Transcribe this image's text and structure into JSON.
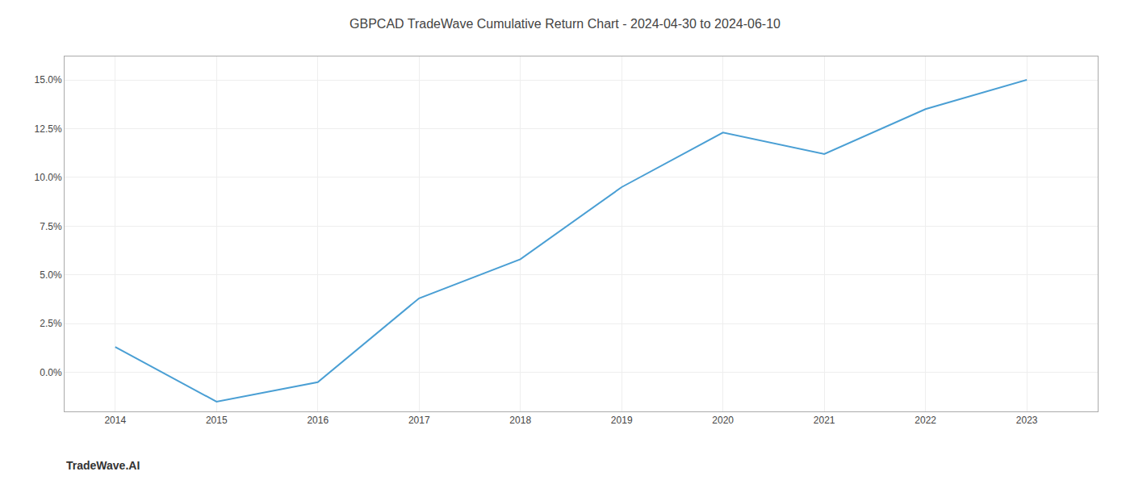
{
  "chart_data": {
    "type": "line",
    "title": "GBPCAD TradeWave Cumulative Return Chart - 2024-04-30 to 2024-06-10",
    "annotations": [
      "TradeWave.AI"
    ],
    "x": [
      2014,
      2015,
      2016,
      2017,
      2018,
      2019,
      2020,
      2021,
      2022,
      2023
    ],
    "values": [
      1.3,
      -1.5,
      -0.5,
      3.8,
      5.8,
      9.5,
      12.3,
      11.2,
      13.5,
      15.0
    ],
    "color": "#4a9fd4",
    "xlim": [
      2013.5,
      2023.7
    ],
    "ylim": [
      -2.0,
      16.2
    ],
    "xticks": [
      2014,
      2015,
      2016,
      2017,
      2018,
      2019,
      2020,
      2021,
      2022,
      2023
    ],
    "yticks": [
      {
        "value": 0.0,
        "label": "0.0%"
      },
      {
        "value": 2.5,
        "label": "2.5%"
      },
      {
        "value": 5.0,
        "label": "5.0%"
      },
      {
        "value": 7.5,
        "label": "7.5%"
      },
      {
        "value": 10.0,
        "label": "10.0%"
      },
      {
        "value": 12.5,
        "label": "12.5%"
      },
      {
        "value": 15.0,
        "label": "15.0%"
      }
    ],
    "grid": true
  }
}
